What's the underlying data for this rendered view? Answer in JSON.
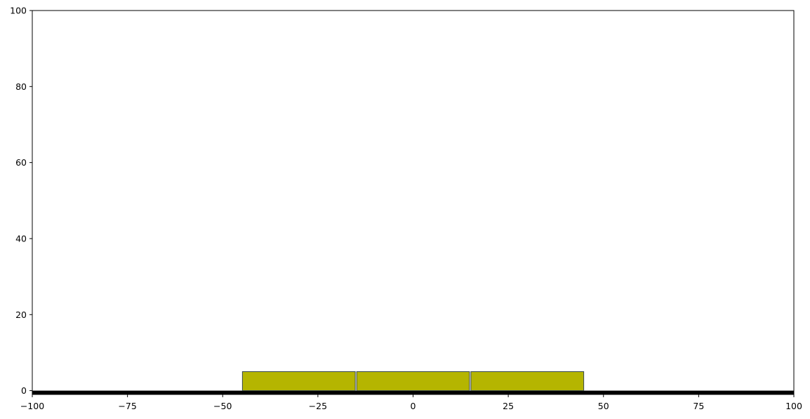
{
  "chart_data": {
    "type": "bar",
    "title": "",
    "xlabel": "",
    "ylabel": "",
    "xlim": [
      -100,
      100
    ],
    "ylim": [
      -1,
      100
    ],
    "grid": false,
    "x_ticks": [
      -100,
      -75,
      -50,
      -25,
      0,
      25,
      50,
      75,
      100
    ],
    "x_tick_labels": [
      "−100",
      "−75",
      "−50",
      "−25",
      "0",
      "25",
      "50",
      "75",
      "100"
    ],
    "y_ticks": [
      0,
      20,
      40,
      60,
      80,
      100
    ],
    "y_tick_labels": [
      "0",
      "20",
      "40",
      "60",
      "80",
      "100"
    ],
    "ground": {
      "x_start": -100,
      "x_end": 100,
      "y_bottom": -1,
      "y_top": 0,
      "color": "#000000"
    },
    "bars": [
      {
        "x_start": -45,
        "x_end": -15,
        "height": 5
      },
      {
        "x_start": -15,
        "x_end": 15,
        "height": 5
      },
      {
        "x_start": 15,
        "x_end": 45,
        "height": 5
      }
    ],
    "bar_color": "#b5b500",
    "bar_edge_color": "#37474f"
  }
}
